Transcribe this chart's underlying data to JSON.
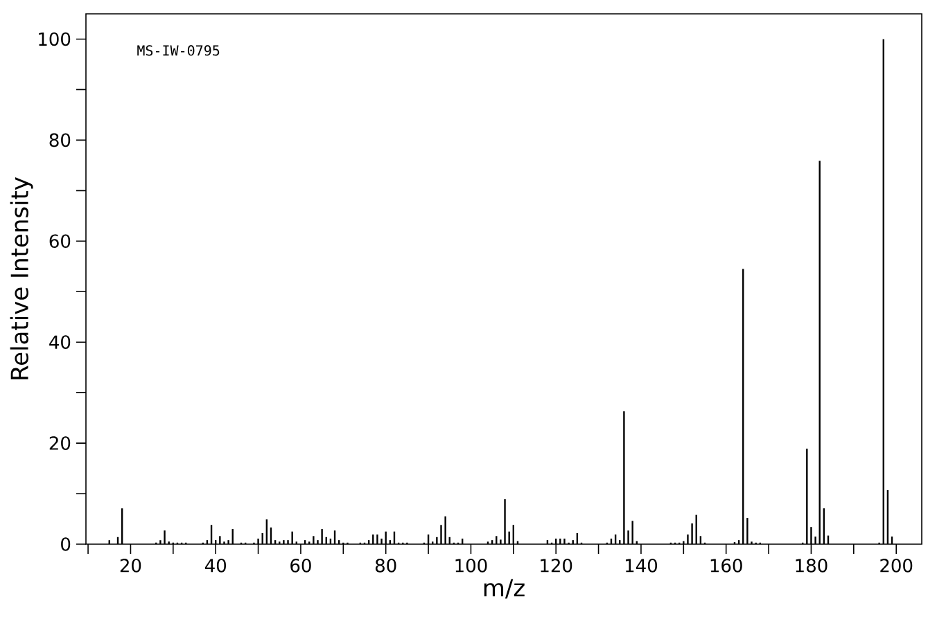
{
  "chart_data": {
    "type": "bar",
    "xlabel": "m/z",
    "ylabel": "Relative Intensity",
    "annotations": [
      "MS-IW-0795"
    ],
    "x": [
      15,
      17,
      18,
      26,
      27,
      28,
      29,
      30,
      31,
      32,
      33,
      37,
      38,
      39,
      40,
      41,
      42,
      43,
      44,
      46,
      47,
      49,
      50,
      51,
      52,
      53,
      54,
      55,
      56,
      57,
      58,
      59,
      61,
      62,
      63,
      64,
      65,
      66,
      67,
      68,
      69,
      70,
      71,
      74,
      75,
      76,
      77,
      78,
      79,
      80,
      81,
      82,
      83,
      84,
      85,
      89,
      90,
      91,
      92,
      93,
      94,
      95,
      96,
      97,
      98,
      104,
      105,
      106,
      107,
      108,
      109,
      110,
      111,
      118,
      119,
      120,
      121,
      122,
      123,
      124,
      125,
      126,
      132,
      133,
      134,
      135,
      136,
      137,
      138,
      139,
      147,
      148,
      149,
      150,
      151,
      152,
      153,
      154,
      155,
      162,
      163,
      164,
      165,
      166,
      167,
      168,
      178,
      179,
      180,
      181,
      182,
      183,
      184,
      196,
      197,
      198,
      199
    ],
    "series": [
      {
        "color": "#000000",
        "values": [
          0.8,
          1.4,
          7.1,
          0.3,
          0.8,
          2.7,
          0.5,
          0.3,
          0.3,
          0.3,
          0.3,
          0.3,
          0.8,
          3.8,
          0.8,
          1.6,
          0.5,
          0.8,
          3.0,
          0.3,
          0.3,
          0.3,
          1.1,
          2.2,
          4.9,
          3.3,
          0.8,
          0.5,
          0.8,
          0.8,
          2.5,
          0.5,
          0.8,
          0.5,
          1.6,
          0.8,
          3.0,
          1.4,
          1.1,
          2.7,
          0.8,
          0.3,
          0.3,
          0.3,
          0.3,
          0.8,
          1.9,
          1.9,
          1.1,
          2.5,
          0.8,
          2.5,
          0.3,
          0.3,
          0.3,
          0.3,
          1.9,
          0.5,
          1.4,
          3.8,
          5.5,
          1.4,
          0.3,
          0.3,
          1.1,
          0.5,
          0.8,
          1.6,
          0.9,
          8.9,
          2.5,
          3.8,
          0.6,
          0.8,
          0.3,
          1.1,
          1.1,
          1.1,
          0.3,
          0.8,
          2.2,
          0.3,
          0.3,
          1.1,
          1.9,
          0.8,
          26.3,
          2.7,
          4.6,
          0.6,
          0.3,
          0.3,
          0.3,
          0.6,
          1.9,
          4.1,
          5.8,
          1.6,
          0.3,
          0.4,
          0.8,
          54.5,
          5.2,
          0.5,
          0.3,
          0.3,
          0.3,
          18.9,
          3.4,
          1.5,
          75.9,
          7.1,
          1.7,
          0.3,
          100,
          10.7,
          1.5
        ]
      }
    ],
    "xlim": [
      9.5,
      206
    ],
    "ylim": [
      0,
      105
    ],
    "xticks": [
      {
        "value": 10,
        "label": null
      },
      20,
      {
        "value": 30,
        "label": null
      },
      40,
      {
        "value": 50,
        "label": null
      },
      60,
      {
        "value": 70,
        "label": null
      },
      80,
      {
        "value": 90,
        "label": null
      },
      100,
      {
        "value": 110,
        "label": null
      },
      120,
      {
        "value": 130,
        "label": null
      },
      140,
      {
        "value": 150,
        "label": null
      },
      160,
      {
        "value": 170,
        "label": null
      },
      180,
      {
        "value": 190,
        "label": null
      },
      200
    ],
    "yticks": [
      0,
      {
        "value": 10,
        "label": null
      },
      20,
      {
        "value": 30,
        "label": null
      },
      40,
      {
        "value": 50,
        "label": null
      },
      60,
      {
        "value": 70,
        "label": null
      },
      80,
      {
        "value": 90,
        "label": null
      },
      100
    ],
    "grid": false
  }
}
